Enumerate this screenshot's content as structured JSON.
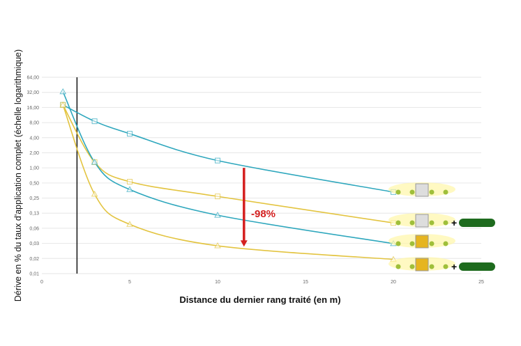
{
  "chart_data": {
    "type": "line",
    "xlabel": "Distance du dernier rang traité (en m)",
    "ylabel": "Dérive en % du taux d'application complet (échelle logarithmique)",
    "xlim": [
      0,
      25
    ],
    "ylim": [
      0.0078125,
      64
    ],
    "yscale": "log2",
    "grid": true,
    "x_ticks": [
      "0",
      "5",
      "10",
      "15",
      "20",
      "25"
    ],
    "x_tick_values": [
      0,
      5,
      10,
      15,
      20,
      25
    ],
    "y_ticks": [
      "64,00",
      "32,00",
      "16,00",
      "8,00",
      "4,00",
      "2,00",
      "1,00",
      "0,50",
      "0,25",
      "0,13",
      "0,06",
      "0,03",
      "0,02",
      "0,01"
    ],
    "series": [
      {
        "marker": "square",
        "color": "#2ea7bd",
        "x": [
          1.2,
          3,
          5,
          10,
          20
        ],
        "y": [
          18,
          8.5,
          4.8,
          1.4,
          0.33
        ]
      },
      {
        "marker": "square",
        "color": "#e3c440",
        "x": [
          1.2,
          3,
          5,
          10,
          20
        ],
        "y": [
          18,
          1.3,
          0.53,
          0.27,
          0.08
        ]
      },
      {
        "marker": "triangle",
        "color": "#2ea7bd",
        "x": [
          1.2,
          3,
          5,
          10,
          20
        ],
        "y": [
          33,
          1.3,
          0.37,
          0.114,
          0.031
        ]
      },
      {
        "marker": "triangle",
        "color": "#e3c440",
        "x": [
          1.2,
          3,
          5,
          10,
          20
        ],
        "y": [
          18,
          0.3,
          0.075,
          0.028,
          0.015
        ]
      }
    ],
    "reference_line_x": 2,
    "annotation": {
      "text": "-98%",
      "color": "#d42020",
      "x": 11.5,
      "y_from": 1.0,
      "y_to": 0.027
    }
  }
}
